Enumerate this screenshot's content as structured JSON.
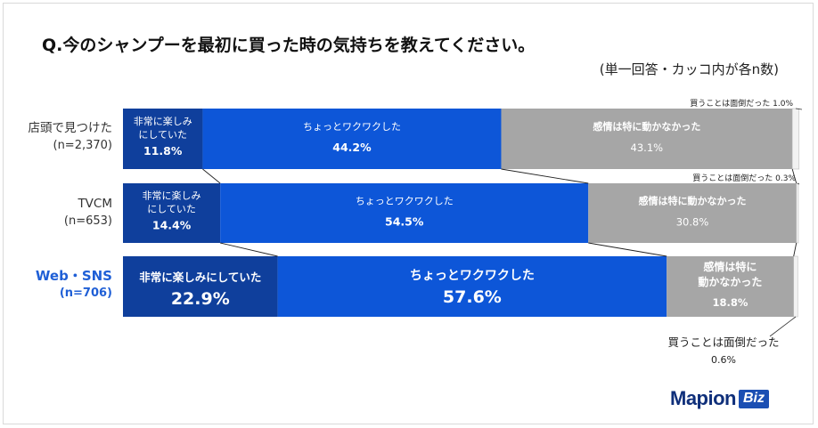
{
  "title": "Q.今のシャンプーを最初に買った時の気持ちを教えてください。",
  "subtitle": "(単一回答・カッコ内が各n数)",
  "colors": {
    "enjoy": "#0f3f9c",
    "excited": "#0d56d8",
    "neutral": "#a6a6a6",
    "trouble": "#f2f2f2",
    "highlight_label": "#1f5fd6"
  },
  "chart_data": {
    "type": "bar",
    "orientation": "horizontal",
    "stacked": true,
    "percent": true,
    "categories": [
      "店頭で見つけた",
      "TVCM",
      "Web・SNS"
    ],
    "category_n": [
      "(n=2,370)",
      "(n=653)",
      "(n=706)"
    ],
    "series": [
      {
        "name_lines": [
          "非常に楽しみ",
          "にしていた"
        ],
        "name_single": "非常に楽しみにしていた",
        "values": [
          11.8,
          14.4,
          22.9
        ]
      },
      {
        "name_lines": [
          "ちょっとワクワクした"
        ],
        "name_single": "ちょっとワクワクした",
        "values": [
          44.2,
          54.5,
          57.6
        ]
      },
      {
        "name_lines": [
          "感情は特に動かなかった"
        ],
        "name_single": "感情は特に動かなかった",
        "name_split": [
          "感情は特に",
          "動かなかった"
        ],
        "values": [
          43.1,
          30.8,
          18.8
        ]
      },
      {
        "name_single": "買うことは面倒だった",
        "values": [
          1.0,
          0.3,
          0.6
        ]
      }
    ],
    "value_labels": [
      [
        "11.8%",
        "44.2%",
        "43.1%",
        "1.0%"
      ],
      [
        "14.4%",
        "54.5%",
        "30.8%",
        "0.3%"
      ],
      [
        "22.9%",
        "57.6%",
        "18.8%",
        "0.6%"
      ]
    ],
    "highlight_category_index": 2
  },
  "logo": {
    "main": "Mapion",
    "badge": "Biz"
  }
}
